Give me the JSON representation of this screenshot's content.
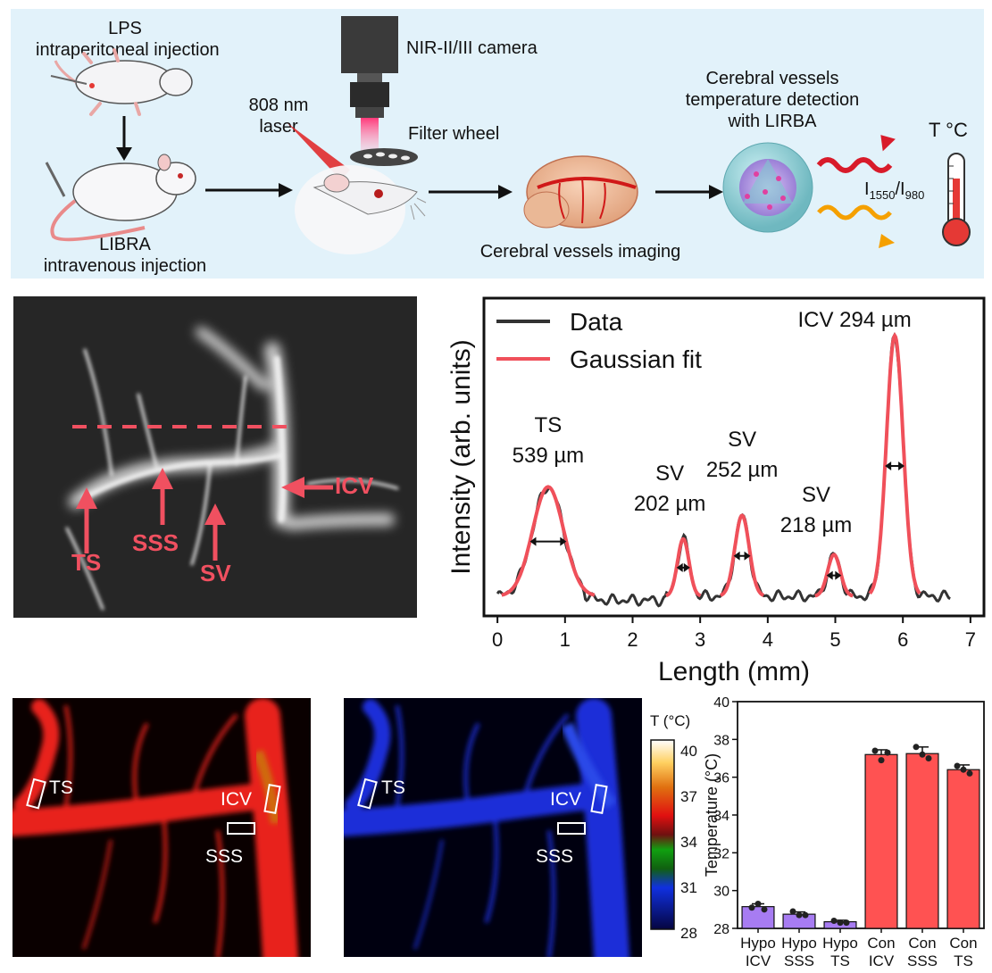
{
  "workflow": {
    "lps_label_line1": "LPS",
    "lps_label_line2": "intraperitoneal injection",
    "libra_label_line1": "LIBRA",
    "libra_label_line2": "intravenous injection",
    "laser_label_line1": "808 nm",
    "laser_label_line2": "laser",
    "camera_label": "NIR-II/III camera",
    "filter_label": "Filter wheel",
    "imaging_label": "Cerebral vessels imaging",
    "detection_line1": "Cerebral vessels",
    "detection_line2": "temperature detection",
    "detection_line3": "with LIRBA",
    "ratio_i1": "I",
    "ratio_sub1": "1550",
    "ratio_sep": "/I",
    "ratio_sub2": "980",
    "thermo_label": "T °C"
  },
  "nir_image": {
    "labels": [
      "TS",
      "SSS",
      "SV",
      "ICV"
    ],
    "accent_color": "#f05060"
  },
  "chart_data": [
    {
      "type": "line",
      "title": "",
      "xlabel": "Length (mm)",
      "ylabel": "Intensity (arb. units)",
      "xlim": [
        -0.2,
        7.2
      ],
      "xticks": [
        "0",
        "1",
        "2",
        "3",
        "4",
        "5",
        "6",
        "7"
      ],
      "legend": [
        "Data",
        "Gaussian fit"
      ],
      "legend_position": "top-left",
      "series_colors": {
        "data": "#333333",
        "fit": "#f0505a"
      },
      "peaks": [
        {
          "name": "TS",
          "width_label": "539 µm",
          "center": 0.75,
          "amplitude": 0.42,
          "fwhm": 0.54
        },
        {
          "name": "SV",
          "width_label": "202 µm",
          "center": 2.75,
          "amplitude": 0.22,
          "fwhm": 0.2
        },
        {
          "name": "SV",
          "width_label": "252 µm",
          "center": 3.62,
          "amplitude": 0.31,
          "fwhm": 0.25
        },
        {
          "name": "SV",
          "width_label": "218 µm",
          "center": 4.98,
          "amplitude": 0.16,
          "fwhm": 0.22
        },
        {
          "name": "ICV",
          "width_label": "294 µm",
          "center": 5.88,
          "amplitude": 1.0,
          "fwhm": 0.29
        }
      ]
    },
    {
      "type": "bar",
      "title": "",
      "xlabel": "",
      "ylabel": "Temperature (°C)",
      "ylim": [
        28,
        40
      ],
      "yticks": [
        "28",
        "30",
        "32",
        "34",
        "36",
        "38",
        "40"
      ],
      "categories": [
        [
          "Hypo",
          "ICV"
        ],
        [
          "Hypo",
          "SSS"
        ],
        [
          "Hypo",
          "TS"
        ],
        [
          "Con",
          "ICV"
        ],
        [
          "Con",
          "SSS"
        ],
        [
          "Con",
          "TS"
        ]
      ],
      "values": [
        29.15,
        28.75,
        28.35,
        37.2,
        37.25,
        36.4
      ],
      "errors": [
        0.15,
        0.12,
        0.08,
        0.25,
        0.35,
        0.25
      ],
      "points": [
        [
          29.1,
          29.3,
          29.0
        ],
        [
          28.9,
          28.7,
          28.7
        ],
        [
          28.4,
          28.3,
          28.3
        ],
        [
          37.4,
          36.9,
          37.3
        ],
        [
          37.6,
          37.2,
          37.0
        ],
        [
          36.6,
          36.4,
          36.2
        ]
      ],
      "colors": [
        "#a77cf2",
        "#a77cf2",
        "#a77cf2",
        "#ff5252",
        "#ff5252",
        "#ff5252"
      ]
    }
  ],
  "thermal_maps": {
    "labels": [
      "TS",
      "ICV",
      "SSS"
    ],
    "colorbar_title": "T (°C)",
    "colorbar_ticks": [
      "40",
      "37",
      "34",
      "31",
      "28"
    ]
  }
}
